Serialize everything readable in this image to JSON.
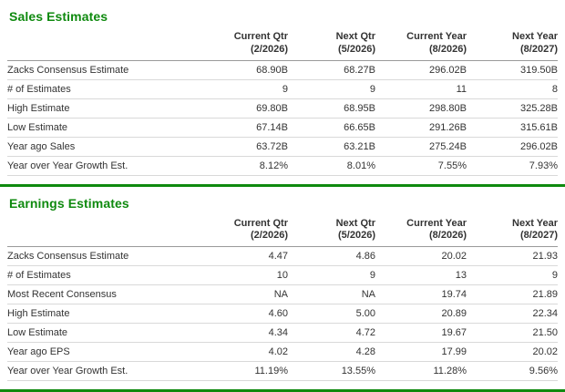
{
  "colors": {
    "accent_green": "#0f8a0f",
    "row_border": "#d9d9d9",
    "header_border": "#9a9a9a",
    "text": "#333333"
  },
  "columns": [
    {
      "label": "Current Qtr",
      "sub": "(2/2026)"
    },
    {
      "label": "Next Qtr",
      "sub": "(5/2026)"
    },
    {
      "label": "Current Year",
      "sub": "(8/2026)"
    },
    {
      "label": "Next Year",
      "sub": "(8/2027)"
    }
  ],
  "sales": {
    "title": "Sales Estimates",
    "rows": [
      {
        "label": "Zacks Consensus Estimate",
        "values": [
          "68.90B",
          "68.27B",
          "296.02B",
          "319.50B"
        ]
      },
      {
        "label": "# of Estimates",
        "values": [
          "9",
          "9",
          "11",
          "8"
        ]
      },
      {
        "label": "High Estimate",
        "values": [
          "69.80B",
          "68.95B",
          "298.80B",
          "325.28B"
        ]
      },
      {
        "label": "Low Estimate",
        "values": [
          "67.14B",
          "66.65B",
          "291.26B",
          "315.61B"
        ]
      },
      {
        "label": "Year ago Sales",
        "values": [
          "63.72B",
          "63.21B",
          "275.24B",
          "296.02B"
        ]
      },
      {
        "label": "Year over Year Growth Est.",
        "values": [
          "8.12%",
          "8.01%",
          "7.55%",
          "7.93%"
        ]
      }
    ]
  },
  "earnings": {
    "title": "Earnings Estimates",
    "rows": [
      {
        "label": "Zacks Consensus Estimate",
        "values": [
          "4.47",
          "4.86",
          "20.02",
          "21.93"
        ]
      },
      {
        "label": "# of Estimates",
        "values": [
          "10",
          "9",
          "13",
          "9"
        ]
      },
      {
        "label": "Most Recent Consensus",
        "values": [
          "NA",
          "NA",
          "19.74",
          "21.89"
        ]
      },
      {
        "label": "High Estimate",
        "values": [
          "4.60",
          "5.00",
          "20.89",
          "22.34"
        ]
      },
      {
        "label": "Low Estimate",
        "values": [
          "4.34",
          "4.72",
          "19.67",
          "21.50"
        ]
      },
      {
        "label": "Year ago EPS",
        "values": [
          "4.02",
          "4.28",
          "17.99",
          "20.02"
        ]
      },
      {
        "label": "Year over Year Growth Est.",
        "values": [
          "11.19%",
          "13.55%",
          "11.28%",
          "9.56%"
        ]
      }
    ]
  }
}
